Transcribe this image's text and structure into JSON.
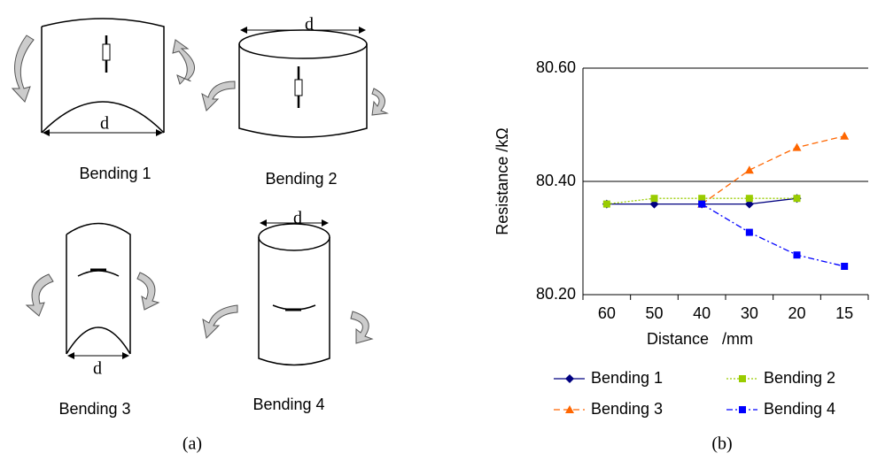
{
  "chart_data": {
    "type": "line",
    "x_label": "Distance   /mm",
    "y_label": "Resistance /kΩ",
    "categories": [
      "60",
      "50",
      "40",
      "30",
      "20",
      "15"
    ],
    "ylim": [
      80.2,
      80.6
    ],
    "yticks": [
      {
        "value": 80.2,
        "label": "80.20"
      },
      {
        "value": 80.4,
        "label": "80.40"
      },
      {
        "value": 80.6,
        "label": "80.60"
      }
    ],
    "grid": true,
    "series": [
      {
        "name": "Bending 1",
        "color": "#000080",
        "marker": "diamond",
        "line_style": "solid",
        "values": [
          80.36,
          80.36,
          80.36,
          80.36,
          80.37,
          null
        ]
      },
      {
        "name": "Bending 2",
        "color": "#99cc00",
        "marker": "square",
        "line_style": "dotted",
        "values": [
          80.36,
          80.37,
          80.37,
          80.37,
          80.37,
          null
        ]
      },
      {
        "name": "Bending 3",
        "color": "#ff6600",
        "marker": "triangle",
        "line_style": "dashed",
        "values": [
          null,
          null,
          80.36,
          80.42,
          80.46,
          80.48
        ]
      },
      {
        "name": "Bending 4",
        "color": "#0000ff",
        "marker": "square",
        "line_style": "dashdot",
        "values": [
          null,
          null,
          80.36,
          80.31,
          80.27,
          80.25
        ]
      }
    ]
  },
  "diagram": {
    "panels": [
      {
        "label": "Bending 1",
        "dimension": "d"
      },
      {
        "label": "Bending 2",
        "dimension": "d"
      },
      {
        "label": "Bending 3",
        "dimension": "d"
      },
      {
        "label": "Bending 4",
        "dimension": "d"
      }
    ],
    "captions": [
      "(a)",
      "(b)"
    ]
  }
}
